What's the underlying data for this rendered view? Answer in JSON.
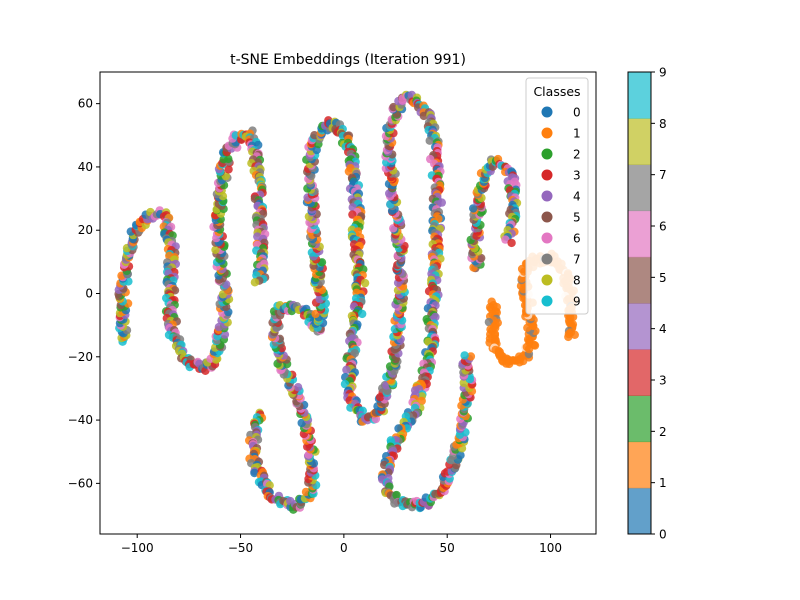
{
  "chart_data": {
    "type": "scatter",
    "title": "t-SNE Embeddings (Iteration 991)",
    "xlabel": "",
    "ylabel": "",
    "xlim": [
      -118,
      122
    ],
    "ylim": [
      -76,
      70
    ],
    "xticks": [
      -100,
      -50,
      0,
      50,
      100
    ],
    "yticks": [
      -60,
      -40,
      -20,
      0,
      20,
      40,
      60
    ],
    "grid": false,
    "legend": {
      "title": "Classes",
      "placement": "top-right",
      "entries": [
        "0",
        "1",
        "2",
        "3",
        "4",
        "5",
        "6",
        "7",
        "8",
        "9"
      ]
    },
    "colors": [
      "#1f77b4",
      "#ff7f0e",
      "#2ca02c",
      "#d62728",
      "#9467bd",
      "#8c564b",
      "#e377c2",
      "#7f7f7f",
      "#bcbd22",
      "#17becf"
    ],
    "colorbar": {
      "min": 0,
      "max": 9,
      "ticks": [
        "0",
        "1",
        "2",
        "3",
        "4",
        "5",
        "6",
        "7",
        "8",
        "9"
      ]
    },
    "series": [
      {
        "kind": "mixed",
        "path": [
          [
            -106,
            -15
          ],
          [
            -107,
            -8
          ],
          [
            -107,
            2
          ],
          [
            -105,
            10
          ],
          [
            -104,
            16
          ],
          [
            -100,
            21
          ],
          [
            -94,
            25
          ],
          [
            -88,
            25
          ],
          [
            -85,
            20
          ],
          [
            -83,
            13
          ],
          [
            -84,
            5
          ],
          [
            -84,
            -4
          ],
          [
            -83,
            -12
          ],
          [
            -80,
            -17
          ],
          [
            -76,
            -21
          ],
          [
            -71,
            -23
          ],
          [
            -65,
            -23
          ],
          [
            -61,
            -19
          ],
          [
            -59,
            -12
          ],
          [
            -58,
            -3
          ],
          [
            -59,
            8
          ],
          [
            -61,
            20
          ],
          [
            -60,
            32
          ],
          [
            -57,
            43
          ],
          [
            -52,
            49
          ],
          [
            -46,
            51
          ],
          [
            -43,
            47
          ],
          [
            -42,
            38
          ],
          [
            -41,
            28
          ],
          [
            -40,
            18
          ],
          [
            -40,
            9
          ],
          [
            -41,
            3
          ]
        ]
      },
      {
        "kind": "mixed",
        "path": [
          [
            -40,
            -38
          ],
          [
            -43,
            -45
          ],
          [
            -44,
            -53
          ],
          [
            -40,
            -59
          ],
          [
            -34,
            -64
          ],
          [
            -27,
            -67
          ],
          [
            -21,
            -67
          ],
          [
            -16,
            -62
          ],
          [
            -15,
            -53
          ],
          [
            -17,
            -45
          ],
          [
            -20,
            -38
          ],
          [
            -24,
            -30
          ],
          [
            -29,
            -23
          ],
          [
            -33,
            -14
          ],
          [
            -33,
            -7
          ],
          [
            -29,
            -4
          ],
          [
            -22,
            -5
          ],
          [
            -16,
            -8
          ],
          [
            -12,
            -12
          ],
          [
            -11,
            -5
          ],
          [
            -12,
            5
          ],
          [
            -14,
            15
          ],
          [
            -15,
            25
          ],
          [
            -16,
            35
          ],
          [
            -16,
            45
          ],
          [
            -12,
            51
          ],
          [
            -6,
            54
          ],
          [
            -1,
            52
          ],
          [
            3,
            46
          ],
          [
            5,
            36
          ],
          [
            6,
            25
          ],
          [
            6,
            15
          ],
          [
            8,
            5
          ],
          [
            7,
            -5
          ],
          [
            5,
            -15
          ],
          [
            3,
            -24
          ],
          [
            2,
            -31
          ],
          [
            6,
            -37
          ],
          [
            11,
            -40
          ],
          [
            17,
            -38
          ],
          [
            21,
            -30
          ],
          [
            25,
            -20
          ],
          [
            27,
            -8
          ],
          [
            28,
            5
          ],
          [
            27,
            16
          ],
          [
            24,
            28
          ],
          [
            22,
            42
          ],
          [
            23,
            55
          ],
          [
            29,
            62
          ],
          [
            36,
            61
          ],
          [
            42,
            55
          ],
          [
            44,
            45
          ],
          [
            45,
            33
          ],
          [
            45,
            20
          ],
          [
            44,
            8
          ],
          [
            43,
            -3
          ],
          [
            42,
            -14
          ],
          [
            40,
            -24
          ],
          [
            38,
            -30
          ]
        ]
      },
      {
        "kind": "mixed",
        "path": [
          [
            38,
            -28
          ],
          [
            35,
            -36
          ],
          [
            30,
            -41
          ],
          [
            25,
            -46
          ],
          [
            21,
            -53
          ],
          [
            20,
            -60
          ],
          [
            24,
            -65
          ],
          [
            31,
            -67
          ],
          [
            38,
            -67
          ],
          [
            45,
            -64
          ],
          [
            51,
            -57
          ],
          [
            56,
            -48
          ],
          [
            59,
            -38
          ],
          [
            60,
            -28
          ],
          [
            59,
            -19
          ]
        ]
      },
      {
        "kind": "mixed",
        "path": [
          [
            64,
            8
          ],
          [
            64,
            18
          ],
          [
            65,
            28
          ],
          [
            67,
            36
          ],
          [
            71,
            41
          ],
          [
            77,
            41
          ],
          [
            81,
            37
          ],
          [
            82,
            29
          ],
          [
            81,
            21
          ],
          [
            79,
            16
          ]
        ]
      },
      {
        "kind": "class1",
        "path": [
          [
            73,
            -3
          ],
          [
            72,
            -8
          ],
          [
            72,
            -15
          ],
          [
            75,
            -20
          ],
          [
            80,
            -22
          ],
          [
            86,
            -21
          ],
          [
            90,
            -17
          ],
          [
            91,
            -10
          ],
          [
            89,
            -3
          ],
          [
            87,
            3
          ],
          [
            88,
            8
          ],
          [
            94,
            11
          ],
          [
            101,
            11
          ],
          [
            106,
            8
          ],
          [
            109,
            2
          ],
          [
            110,
            -6
          ],
          [
            110,
            -14
          ]
        ]
      }
    ]
  }
}
